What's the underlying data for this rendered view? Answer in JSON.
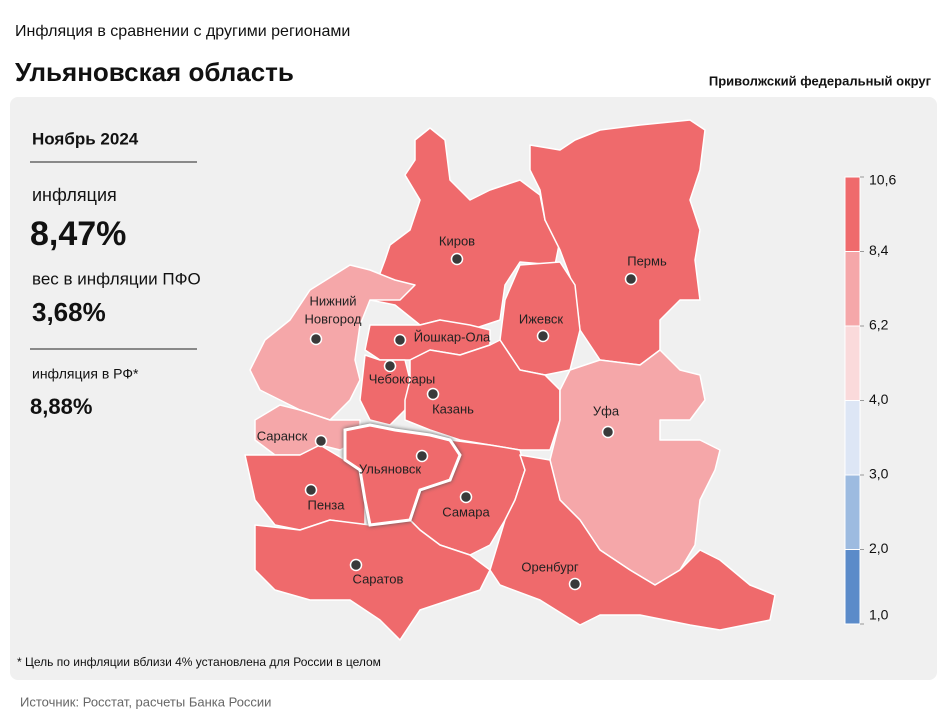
{
  "header": {
    "subtitle": "Инфляция  в сравнении  с другими регионами",
    "title": "Ульяновская область",
    "district": "Приволжский федеральный округ"
  },
  "stats": {
    "period": "Ноябрь 2024",
    "inflation_label": "инфляция",
    "inflation_value": "8,47%",
    "weight_label": "вес в инфляции  ПФО",
    "weight_value": "3,68%",
    "rf_label": "инфляция  в РФ*",
    "rf_value": "8,88%"
  },
  "legend": {
    "ticks": [
      {
        "value": 10.6,
        "label": "10,6"
      },
      {
        "value": 8.4,
        "label": "8,4"
      },
      {
        "value": 6.2,
        "label": "6,2"
      },
      {
        "value": 4.0,
        "label": "4,0"
      },
      {
        "value": 3.0,
        "label": "3,0"
      },
      {
        "value": 2.0,
        "label": "2,0"
      },
      {
        "value": 1.0,
        "label": "1,0"
      }
    ],
    "colors": [
      "#ef6a6c",
      "#f5a7a9",
      "#fadadb",
      "#dde6f5",
      "#9dbbe0",
      "#5b8bc9"
    ]
  },
  "cities": [
    {
      "label": "Киров"
    },
    {
      "label": "Пермь"
    },
    {
      "lines": [
        "Нижний",
        "Новгород"
      ]
    },
    {
      "label": "Ижевск"
    },
    {
      "label": "Йошкар-Ола"
    },
    {
      "label": "Чебоксары"
    },
    {
      "label": "Казань"
    },
    {
      "label": "Уфа"
    },
    {
      "label": "Саранск"
    },
    {
      "label": "Ульяновск"
    },
    {
      "label": "Пенза"
    },
    {
      "label": "Самара"
    },
    {
      "label": "Саратов"
    },
    {
      "label": "Оренбург"
    }
  ],
  "footnote": "* Цель по инфляции вблизи 4% установлена для России в целом",
  "source": "Источник: Росстат, расчеты Банка России"
}
